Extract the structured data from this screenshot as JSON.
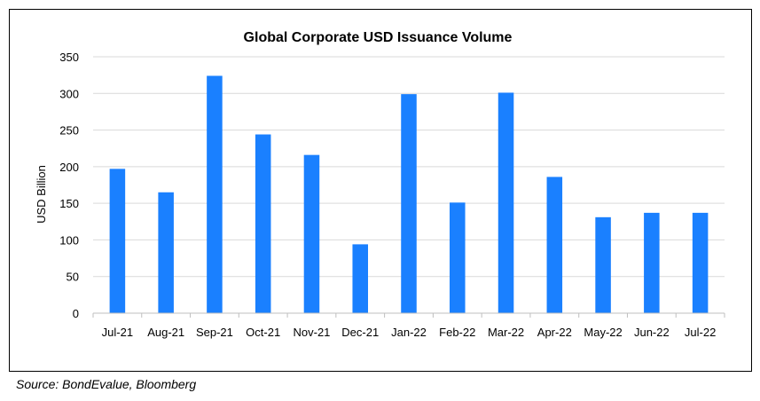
{
  "source_note": "Source: BondEvalue, Bloomberg",
  "colors": {
    "bar": "#1a80ff",
    "grid": "#d9d9d9",
    "axis": "#bfbfbf",
    "text": "#000000"
  },
  "chart_data": {
    "type": "bar",
    "title": "Global Corporate USD Issuance Volume",
    "xlabel": "",
    "ylabel": "USD Billion",
    "ylim": [
      0,
      350
    ],
    "yticks": [
      0,
      50,
      100,
      150,
      200,
      250,
      300,
      350
    ],
    "grid": true,
    "legend": "none",
    "categories": [
      "Jul-21",
      "Aug-21",
      "Sep-21",
      "Oct-21",
      "Nov-21",
      "Dec-21",
      "Jan-22",
      "Feb-22",
      "Mar-22",
      "Apr-22",
      "May-22",
      "Jun-22",
      "Jul-22"
    ],
    "values": [
      197,
      165,
      324,
      244,
      216,
      94,
      299,
      151,
      301,
      186,
      131,
      137,
      137
    ]
  }
}
